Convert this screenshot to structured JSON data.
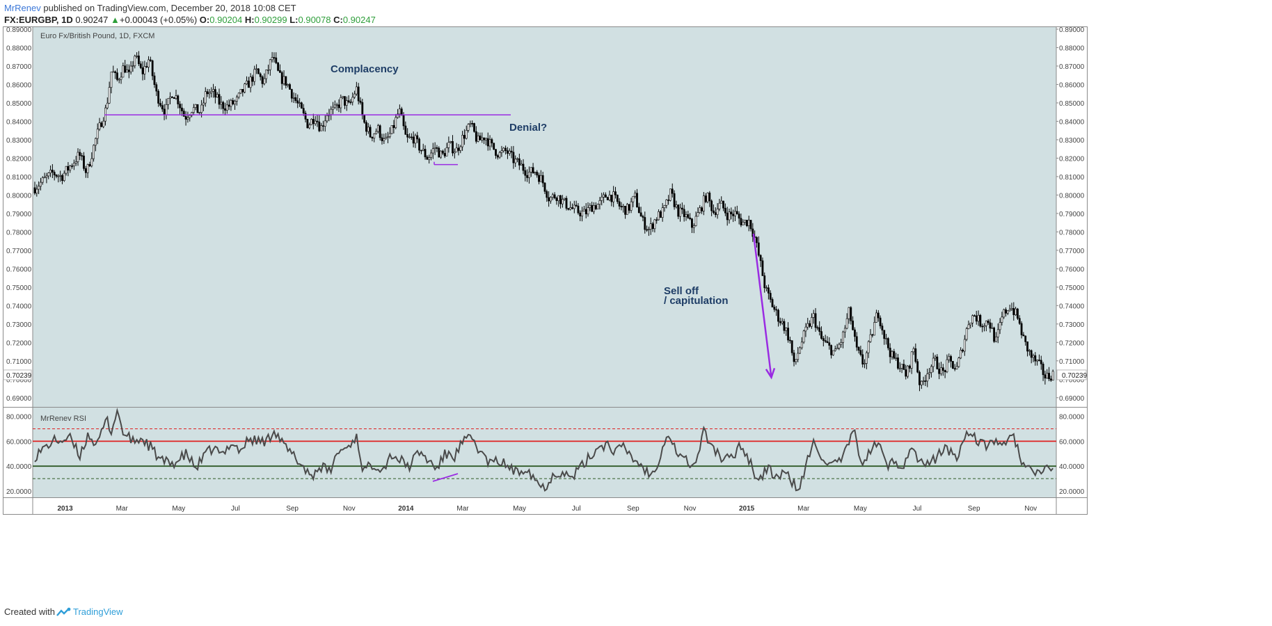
{
  "header": {
    "author": "MrRenev",
    "published_text": " published on TradingView.com, December 20, 2018 10:08 CET",
    "symbol": "FX:EURGBP, 1D",
    "last": "0.90247",
    "change": "+0.00043 (+0.05%)",
    "o_label": "O:",
    "o_value": "0.90204",
    "h_label": "H:",
    "h_value": "0.90299",
    "l_label": "L:",
    "l_value": "0.90078",
    "c_label": "C:",
    "c_value": "0.90247"
  },
  "footer": {
    "created_text": "Created with",
    "brand": "TradingView"
  },
  "colors": {
    "background": "#d1e0e2",
    "candle": "#000000",
    "rsi_line": "#4a4a4a",
    "annotation_text": "#1e3d66",
    "trendline": "#9a2be2",
    "rsi_upper": "#e02020",
    "rsi_lower": "#2f5a26"
  },
  "chart_data": [
    {
      "type": "candlestick",
      "title": "Euro Fx/British Pound, 1D, FXCM",
      "ylim": [
        0.685,
        0.8915
      ],
      "y_ticks": [
        "0.89000",
        "0.88000",
        "0.87000",
        "0.86000",
        "0.85000",
        "0.84000",
        "0.83000",
        "0.82000",
        "0.81000",
        "0.80000",
        "0.79000",
        "0.78000",
        "0.77000",
        "0.76000",
        "0.75000",
        "0.74000",
        "0.73000",
        "0.72000",
        "0.71000",
        "0.70000",
        "0.69000"
      ],
      "last_price_label": "0.70239",
      "x_ticks": [
        "2013",
        "Mar",
        "May",
        "Jul",
        "Sep",
        "Nov",
        "2014",
        "Mar",
        "May",
        "Jul",
        "Sep",
        "Nov",
        "2015",
        "Mar",
        "May",
        "Jul",
        "Sep",
        "Nov"
      ],
      "price_path": [
        [
          0.0,
          0.804
        ],
        [
          1.0,
          0.812
        ],
        [
          1.5,
          0.81
        ],
        [
          2.5,
          0.822
        ],
        [
          2.9,
          0.812
        ],
        [
          3.4,
          0.83
        ],
        [
          3.8,
          0.842
        ],
        [
          4.0,
          0.847
        ],
        [
          4.3,
          0.868
        ],
        [
          4.6,
          0.862
        ],
        [
          5.0,
          0.87
        ],
        [
          5.3,
          0.864
        ],
        [
          5.6,
          0.876
        ],
        [
          6.0,
          0.866
        ],
        [
          6.4,
          0.874
        ],
        [
          6.8,
          0.855
        ],
        [
          7.3,
          0.845
        ],
        [
          7.7,
          0.856
        ],
        [
          8.0,
          0.852
        ],
        [
          8.4,
          0.842
        ],
        [
          8.8,
          0.847
        ],
        [
          9.3,
          0.845
        ],
        [
          9.6,
          0.856
        ],
        [
          10.0,
          0.855
        ],
        [
          10.4,
          0.849
        ],
        [
          10.8,
          0.848
        ],
        [
          11.3,
          0.851
        ],
        [
          11.6,
          0.856
        ],
        [
          12.0,
          0.861
        ],
        [
          12.4,
          0.867
        ],
        [
          12.8,
          0.861
        ],
        [
          13.3,
          0.875
        ],
        [
          13.7,
          0.864
        ],
        [
          14.1,
          0.861
        ],
        [
          14.5,
          0.853
        ],
        [
          14.9,
          0.846
        ],
        [
          15.3,
          0.838
        ],
        [
          15.7,
          0.843
        ],
        [
          16.0,
          0.836
        ],
        [
          16.4,
          0.845
        ],
        [
          16.8,
          0.846
        ],
        [
          17.2,
          0.852
        ],
        [
          17.6,
          0.848
        ],
        [
          18.0,
          0.858
        ],
        [
          18.4,
          0.84
        ],
        [
          18.8,
          0.832
        ],
        [
          19.2,
          0.836
        ],
        [
          19.6,
          0.828
        ],
        [
          20.0,
          0.835
        ],
        [
          20.4,
          0.846
        ],
        [
          20.8,
          0.83
        ],
        [
          21.2,
          0.831
        ],
        [
          21.6,
          0.825
        ],
        [
          22.0,
          0.82
        ],
        [
          22.4,
          0.826
        ],
        [
          22.8,
          0.821
        ],
        [
          23.2,
          0.827
        ],
        [
          23.6,
          0.824
        ],
        [
          24.0,
          0.832
        ],
        [
          24.4,
          0.838
        ],
        [
          24.8,
          0.829
        ],
        [
          25.2,
          0.832
        ],
        [
          25.6,
          0.826
        ],
        [
          26.0,
          0.822
        ],
        [
          26.4,
          0.824
        ],
        [
          26.8,
          0.819
        ],
        [
          27.2,
          0.816
        ],
        [
          27.6,
          0.812
        ],
        [
          28.0,
          0.813
        ],
        [
          28.4,
          0.808
        ],
        [
          28.8,
          0.798
        ],
        [
          29.2,
          0.8
        ],
        [
          29.6,
          0.796
        ],
        [
          30.0,
          0.793
        ],
        [
          30.4,
          0.791
        ],
        [
          30.8,
          0.79
        ],
        [
          31.2,
          0.794
        ],
        [
          31.6,
          0.795
        ],
        [
          32.0,
          0.8
        ],
        [
          32.4,
          0.799
        ],
        [
          32.8,
          0.793
        ],
        [
          33.2,
          0.792
        ],
        [
          33.6,
          0.799
        ],
        [
          34.0,
          0.786
        ],
        [
          34.4,
          0.781
        ],
        [
          34.8,
          0.788
        ],
        [
          35.2,
          0.791
        ],
        [
          35.6,
          0.801
        ],
        [
          36.0,
          0.791
        ],
        [
          36.4,
          0.789
        ],
        [
          36.8,
          0.783
        ],
        [
          37.2,
          0.791
        ],
        [
          37.6,
          0.8
        ],
        [
          38.0,
          0.791
        ],
        [
          38.4,
          0.795
        ],
        [
          38.8,
          0.789
        ],
        [
          39.2,
          0.79
        ],
        [
          39.6,
          0.785
        ],
        [
          40.0,
          0.786
        ],
        [
          40.3,
          0.777
        ],
        [
          40.6,
          0.764
        ],
        [
          40.9,
          0.749
        ],
        [
          41.2,
          0.742
        ],
        [
          41.6,
          0.734
        ],
        [
          42.0,
          0.728
        ],
        [
          42.3,
          0.72
        ],
        [
          42.5,
          0.707
        ],
        [
          42.8,
          0.717
        ],
        [
          43.2,
          0.727
        ],
        [
          43.6,
          0.734
        ],
        [
          44.0,
          0.722
        ],
        [
          44.4,
          0.718
        ],
        [
          44.8,
          0.714
        ],
        [
          45.2,
          0.722
        ],
        [
          45.6,
          0.737
        ],
        [
          46.0,
          0.716
        ],
        [
          46.4,
          0.708
        ],
        [
          46.8,
          0.722
        ],
        [
          47.2,
          0.737
        ],
        [
          47.6,
          0.722
        ],
        [
          48.0,
          0.712
        ],
        [
          48.4,
          0.708
        ],
        [
          48.8,
          0.702
        ],
        [
          49.2,
          0.717
        ],
        [
          49.6,
          0.695
        ],
        [
          50.0,
          0.705
        ],
        [
          50.4,
          0.71
        ],
        [
          50.8,
          0.703
        ],
        [
          51.2,
          0.71
        ],
        [
          51.6,
          0.705
        ],
        [
          52.0,
          0.72
        ],
        [
          52.3,
          0.732
        ],
        [
          52.6,
          0.735
        ],
        [
          53.0,
          0.73
        ],
        [
          53.4,
          0.732
        ],
        [
          53.8,
          0.72
        ],
        [
          54.2,
          0.735
        ],
        [
          54.6,
          0.74
        ],
        [
          55.0,
          0.734
        ],
        [
          55.4,
          0.72
        ],
        [
          55.8,
          0.712
        ],
        [
          56.2,
          0.708
        ],
        [
          56.6,
          0.701
        ],
        [
          57.0,
          0.703
        ]
      ],
      "month_index_range": [
        0,
        57.2
      ],
      "annotations": [
        {
          "text": "Complacency"
        },
        {
          "text": "Denial?"
        },
        {
          "text": "Sell off"
        },
        {
          "text": "/ capitulation"
        }
      ],
      "horizontal_level": 0.8435,
      "small_support_level": 0.8165,
      "trendline": {
        "from": [
          40.3,
          0.779
        ],
        "to": [
          41.3,
          0.701
        ]
      }
    },
    {
      "type": "line",
      "title": "MrRenev RSI",
      "ylim": [
        15,
        87
      ],
      "y_ticks": [
        "80.0000",
        "60.0000",
        "40.0000",
        "20.0000"
      ],
      "levels": [
        {
          "value": 70,
          "style": "dashed",
          "color": "#e02020"
        },
        {
          "value": 60,
          "style": "solid",
          "color": "#e02020"
        },
        {
          "value": 40,
          "style": "solid",
          "color": "#2f5a26"
        },
        {
          "value": 30,
          "style": "dashed",
          "color": "#2f5a26"
        }
      ],
      "rsi_path": [
        [
          0.0,
          48
        ],
        [
          1.0,
          60
        ],
        [
          2.0,
          62
        ],
        [
          2.5,
          48
        ],
        [
          3.0,
          66
        ],
        [
          3.5,
          56
        ],
        [
          4.0,
          78
        ],
        [
          4.3,
          68
        ],
        [
          4.6,
          85
        ],
        [
          5.0,
          65
        ],
        [
          5.5,
          60
        ],
        [
          6.0,
          62
        ],
        [
          6.5,
          55
        ],
        [
          7.0,
          45
        ],
        [
          7.5,
          42
        ],
        [
          8.0,
          44
        ],
        [
          8.5,
          50
        ],
        [
          9.0,
          38
        ],
        [
          9.5,
          48
        ],
        [
          10.0,
          55
        ],
        [
          10.5,
          48
        ],
        [
          11.0,
          60
        ],
        [
          11.5,
          52
        ],
        [
          12.0,
          62
        ],
        [
          12.5,
          60
        ],
        [
          13.0,
          60
        ],
        [
          13.4,
          70
        ],
        [
          14.0,
          55
        ],
        [
          14.5,
          48
        ],
        [
          15.0,
          40
        ],
        [
          15.5,
          32
        ],
        [
          16.0,
          40
        ],
        [
          16.5,
          35
        ],
        [
          17.0,
          52
        ],
        [
          17.5,
          55
        ],
        [
          18.0,
          64
        ],
        [
          18.4,
          36
        ],
        [
          19.0,
          42
        ],
        [
          19.5,
          38
        ],
        [
          20.0,
          50
        ],
        [
          20.5,
          44
        ],
        [
          21.0,
          40
        ],
        [
          21.5,
          52
        ],
        [
          22.0,
          45
        ],
        [
          22.5,
          38
        ],
        [
          23.0,
          50
        ],
        [
          23.5,
          48
        ],
        [
          24.0,
          60
        ],
        [
          24.5,
          62
        ],
        [
          25.0,
          50
        ],
        [
          25.5,
          42
        ],
        [
          26.0,
          44
        ],
        [
          26.5,
          40
        ],
        [
          27.0,
          34
        ],
        [
          27.5,
          40
        ],
        [
          28.0,
          30
        ],
        [
          28.5,
          22
        ],
        [
          29.0,
          33
        ],
        [
          29.5,
          36
        ],
        [
          30.0,
          30
        ],
        [
          30.5,
          38
        ],
        [
          31.0,
          46
        ],
        [
          31.5,
          55
        ],
        [
          32.0,
          58
        ],
        [
          32.5,
          52
        ],
        [
          33.0,
          55
        ],
        [
          33.5,
          46
        ],
        [
          34.0,
          40
        ],
        [
          34.5,
          32
        ],
        [
          35.0,
          48
        ],
        [
          35.4,
          68
        ],
        [
          36.0,
          50
        ],
        [
          36.5,
          44
        ],
        [
          37.0,
          40
        ],
        [
          37.4,
          68
        ],
        [
          38.0,
          55
        ],
        [
          38.5,
          45
        ],
        [
          39.0,
          46
        ],
        [
          39.5,
          58
        ],
        [
          40.0,
          45
        ],
        [
          40.5,
          28
        ],
        [
          41.0,
          38
        ],
        [
          41.5,
          32
        ],
        [
          42.0,
          34
        ],
        [
          42.5,
          26
        ],
        [
          42.8,
          20
        ],
        [
          43.2,
          42
        ],
        [
          43.6,
          58
        ],
        [
          44.0,
          50
        ],
        [
          44.5,
          40
        ],
        [
          45.0,
          42
        ],
        [
          45.5,
          55
        ],
        [
          45.9,
          68
        ],
        [
          46.3,
          42
        ],
        [
          46.8,
          52
        ],
        [
          47.2,
          60
        ],
        [
          47.7,
          40
        ],
        [
          48.2,
          44
        ],
        [
          48.6,
          40
        ],
        [
          49.0,
          55
        ],
        [
          49.5,
          45
        ],
        [
          50.0,
          40
        ],
        [
          50.5,
          48
        ],
        [
          51.0,
          55
        ],
        [
          51.6,
          46
        ],
        [
          52.0,
          62
        ],
        [
          52.4,
          70
        ],
        [
          52.8,
          58
        ],
        [
          53.3,
          56
        ],
        [
          53.8,
          62
        ],
        [
          54.3,
          55
        ],
        [
          54.8,
          65
        ],
        [
          55.3,
          42
        ],
        [
          55.8,
          36
        ],
        [
          56.2,
          32
        ],
        [
          56.6,
          38
        ],
        [
          57.0,
          40
        ]
      ]
    }
  ]
}
